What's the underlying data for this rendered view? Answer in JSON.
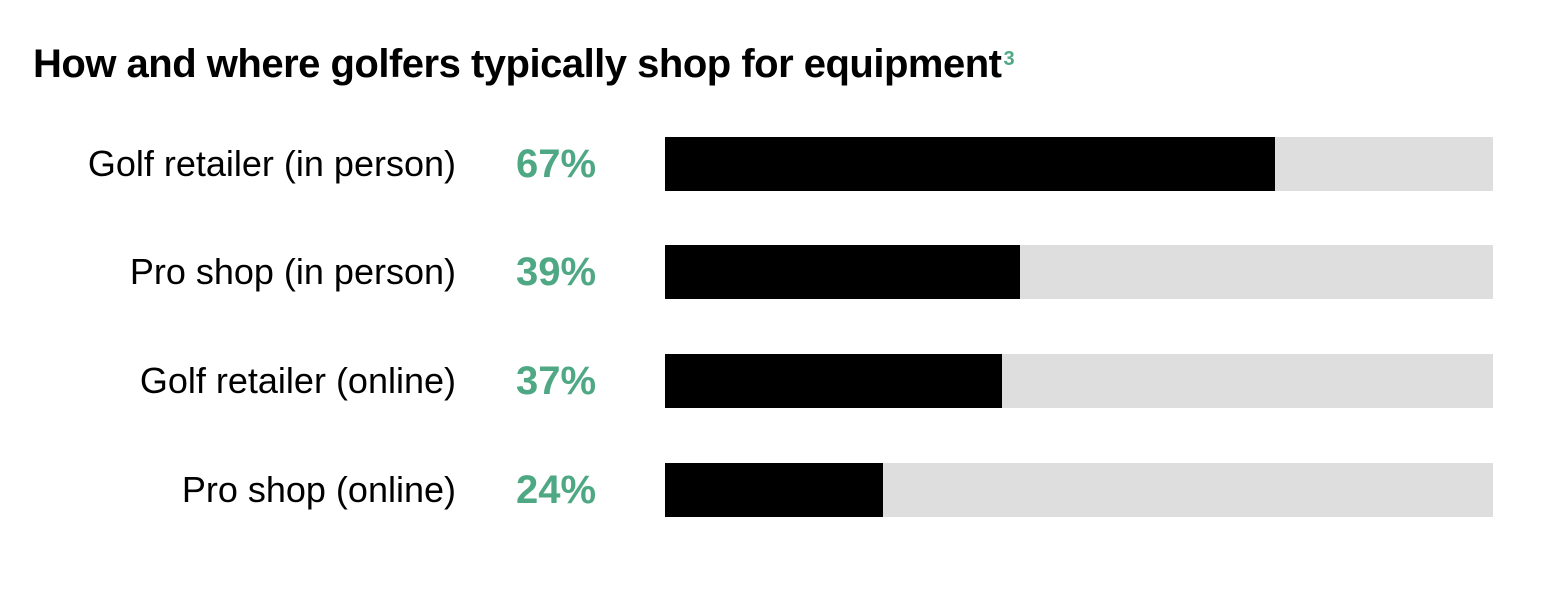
{
  "chart_data": {
    "type": "bar",
    "orientation": "horizontal",
    "title": "How and where golfers typically shop for equipment",
    "title_footnote": "3",
    "categories": [
      "Golf retailer (in person)",
      "Pro shop (in person)",
      "Golf retailer (online)",
      "Pro shop (online)"
    ],
    "values": [
      67,
      39,
      37,
      24
    ],
    "value_labels": [
      "67%",
      "39%",
      "37%",
      "24%"
    ],
    "xlim": [
      0,
      91
    ],
    "grid": false,
    "colors": {
      "bar": "#000000",
      "track": "#dedede",
      "value_label": "#4fa884"
    }
  }
}
